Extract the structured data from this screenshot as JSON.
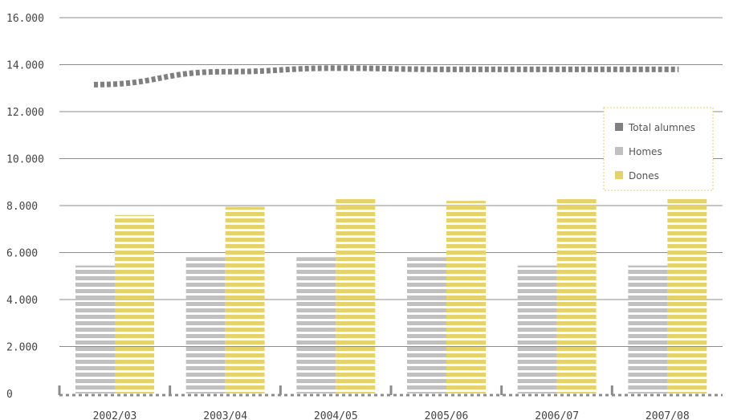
{
  "chart_data": {
    "type": "bar",
    "categories": [
      "2002/03",
      "2003/04",
      "2004/05",
      "2005/06",
      "2006/07",
      "2007/08"
    ],
    "series": [
      {
        "name": "Homes",
        "kind": "bar",
        "color": "#c0c0c0",
        "values": [
          5450,
          5800,
          5800,
          5800,
          5450,
          5450
        ]
      },
      {
        "name": "Dones",
        "kind": "bar",
        "color": "#e6d26a",
        "values": [
          7600,
          7950,
          8300,
          8200,
          8300,
          8300
        ]
      },
      {
        "name": "Total alumnes",
        "kind": "line",
        "color": "#808080",
        "values": [
          13150,
          13700,
          13850,
          13800,
          13800,
          13800
        ]
      }
    ],
    "ylim": [
      0,
      16000
    ],
    "yticks": [
      0,
      2000,
      4000,
      6000,
      8000,
      10000,
      12000,
      14000,
      16000
    ],
    "ytick_labels": [
      "0",
      "2.000",
      "4.000",
      "6.000",
      "8.000",
      "10.000",
      "12.000",
      "14.000",
      "16.000"
    ],
    "title": "",
    "xlabel": "",
    "ylabel": "",
    "grid": true,
    "legend": {
      "placement": "right",
      "entries": [
        {
          "label": "Total alumnes",
          "color": "#808080"
        },
        {
          "label": "Homes",
          "color": "#c0c0c0"
        },
        {
          "label": "Dones",
          "color": "#e6d26a"
        }
      ]
    }
  }
}
